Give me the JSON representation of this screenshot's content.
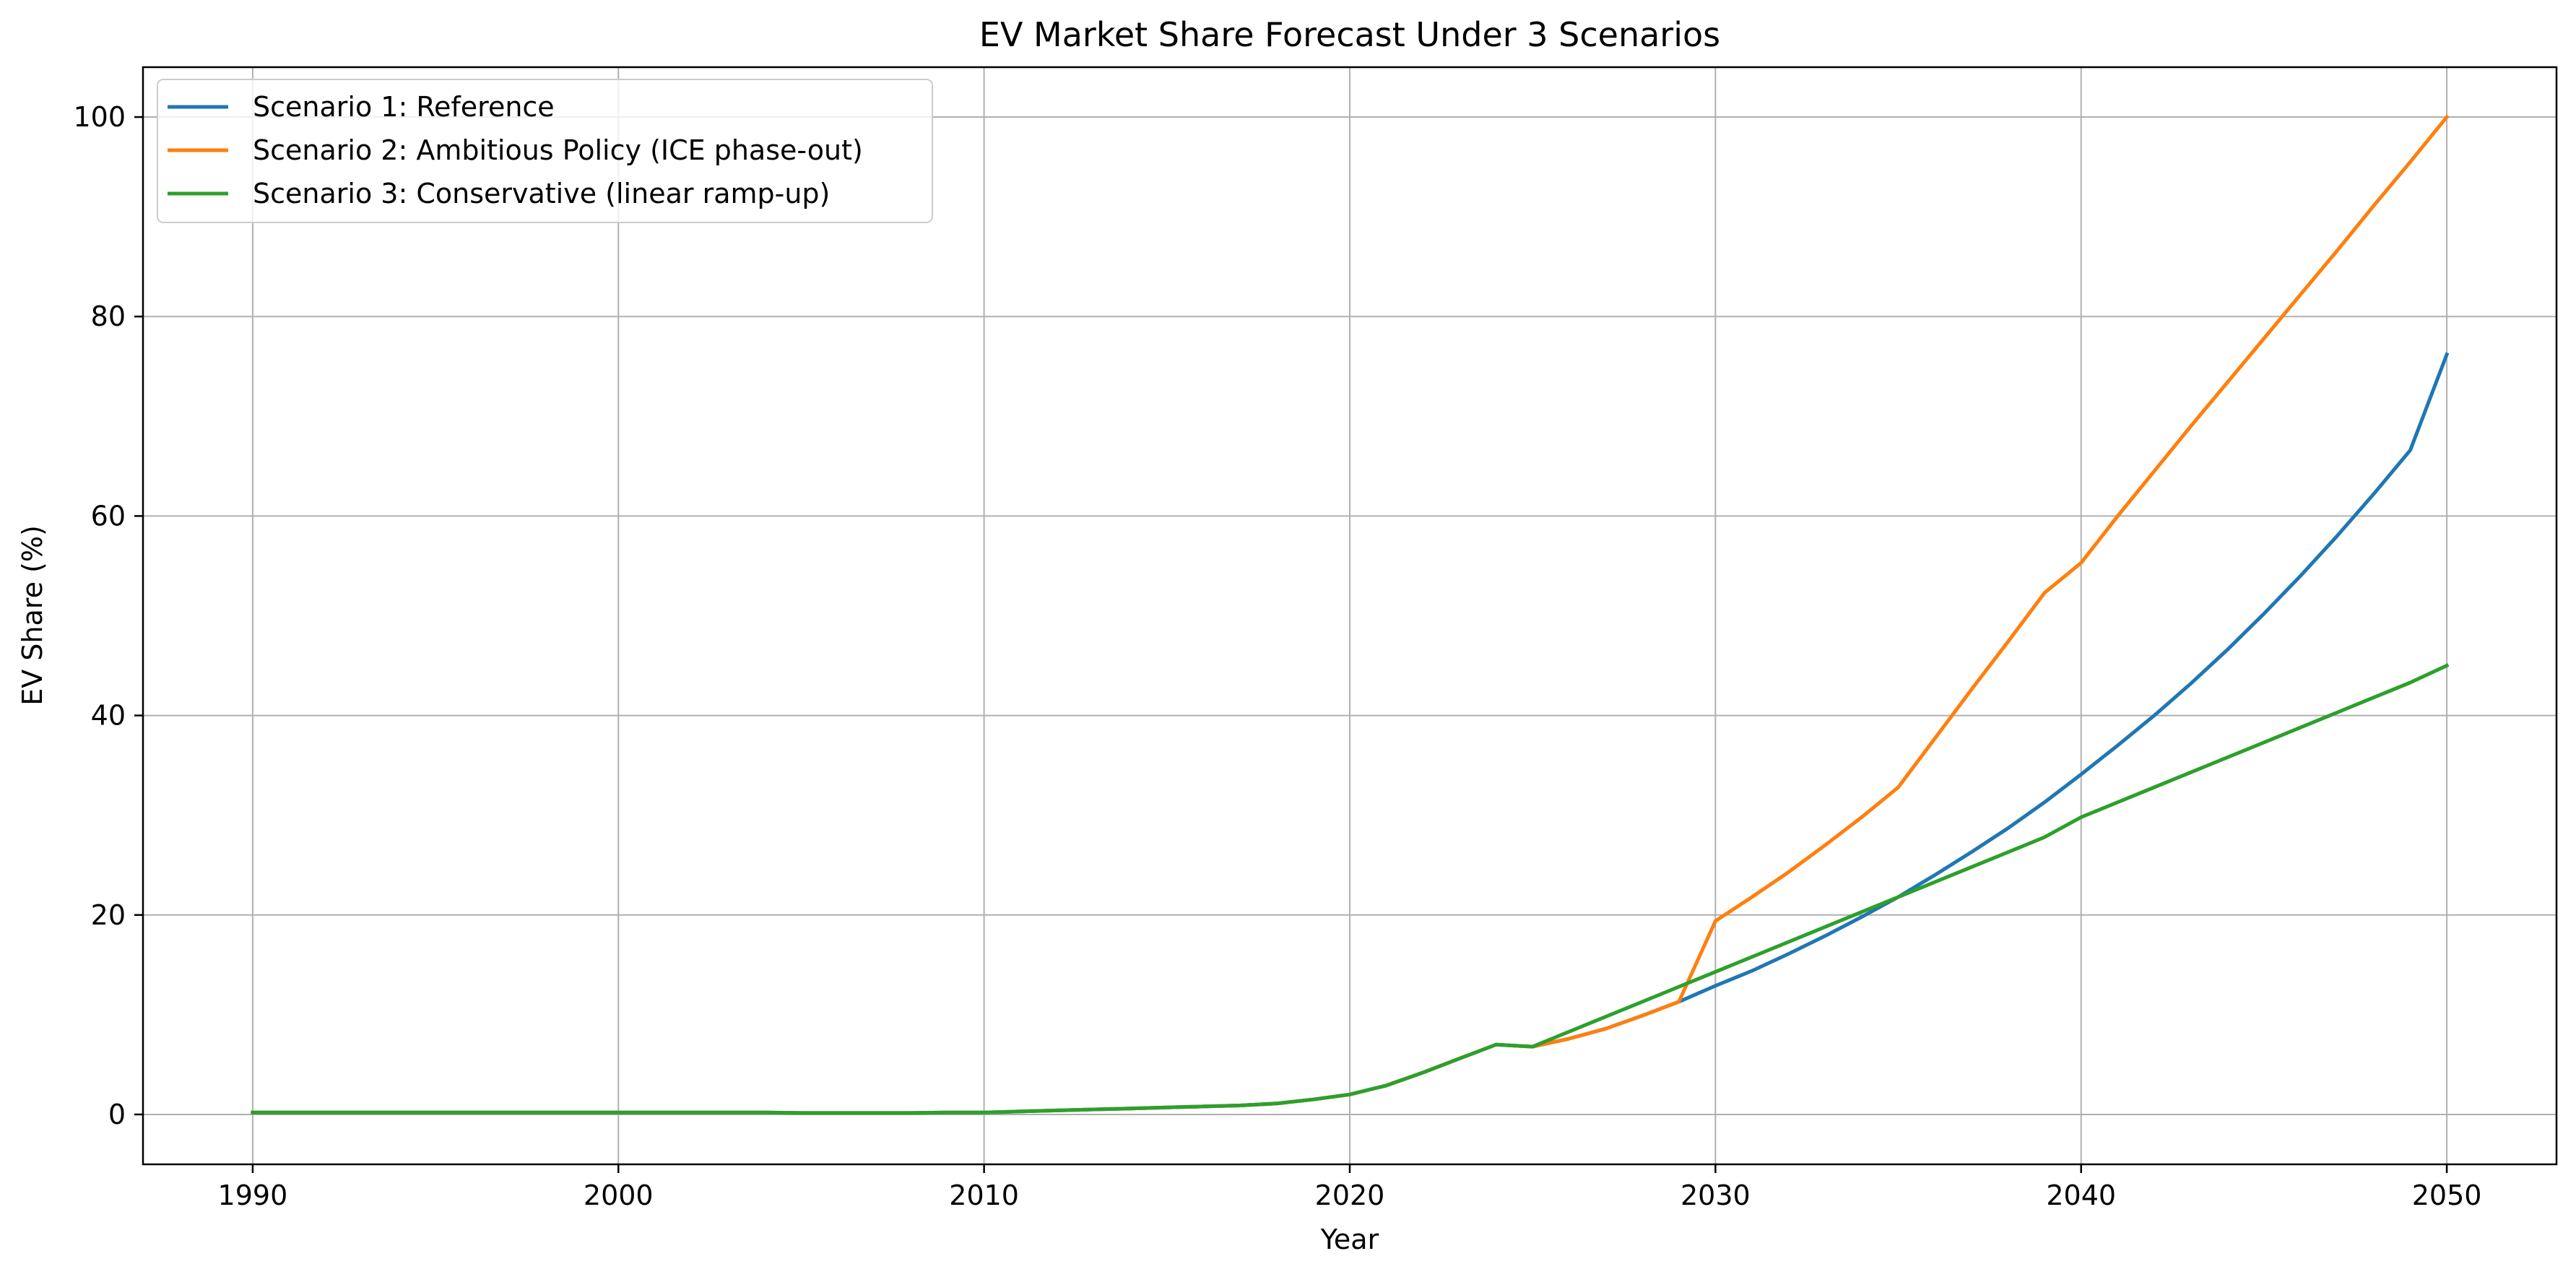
{
  "chart_data": {
    "type": "line",
    "title": "EV Market Share Forecast Under 3 Scenarios",
    "xlabel": "Year",
    "ylabel": "EV Share (%)",
    "xlim": [
      1987,
      2053
    ],
    "ylim": [
      -5,
      105
    ],
    "xticks": [
      1990,
      2000,
      2010,
      2020,
      2030,
      2040,
      2050
    ],
    "yticks": [
      0,
      20,
      40,
      60,
      80,
      100
    ],
    "grid": true,
    "legend_position": "top-left",
    "x": [
      1990,
      1991,
      1992,
      1993,
      1994,
      1995,
      1996,
      1997,
      1998,
      1999,
      2000,
      2001,
      2002,
      2003,
      2004,
      2005,
      2006,
      2007,
      2008,
      2009,
      2010,
      2011,
      2012,
      2013,
      2014,
      2015,
      2016,
      2017,
      2018,
      2019,
      2020,
      2021,
      2022,
      2023,
      2024,
      2025,
      2026,
      2027,
      2028,
      2029,
      2030,
      2031,
      2032,
      2033,
      2034,
      2035,
      2036,
      2037,
      2038,
      2039,
      2040,
      2041,
      2042,
      2043,
      2044,
      2045,
      2046,
      2047,
      2048,
      2049,
      2050
    ],
    "series": [
      {
        "name": "Scenario 1: Reference",
        "color": "#1f77b4",
        "values": [
          0.2,
          0.2,
          0.2,
          0.2,
          0.2,
          0.2,
          0.2,
          0.2,
          0.2,
          0.2,
          0.2,
          0.2,
          0.2,
          0.2,
          0.2,
          0.15,
          0.15,
          0.15,
          0.15,
          0.2,
          0.2,
          0.3,
          0.4,
          0.5,
          0.6,
          0.7,
          0.8,
          0.9,
          1.1,
          1.5,
          2.0,
          2.9,
          4.2,
          5.6,
          7.0,
          6.8,
          7.6,
          8.6,
          9.9,
          11.3,
          12.9,
          14.4,
          16.1,
          17.9,
          19.8,
          21.8,
          24.0,
          26.3,
          28.7,
          31.3,
          34.1,
          37.0,
          40.0,
          43.2,
          46.6,
          50.2,
          54.0,
          58.0,
          62.2,
          66.6,
          76.2
        ]
      },
      {
        "name": "Scenario 2: Ambitious Policy (ICE phase-out)",
        "color": "#ff7f0e",
        "values": [
          0.2,
          0.2,
          0.2,
          0.2,
          0.2,
          0.2,
          0.2,
          0.2,
          0.2,
          0.2,
          0.2,
          0.2,
          0.2,
          0.2,
          0.2,
          0.15,
          0.15,
          0.15,
          0.15,
          0.2,
          0.2,
          0.3,
          0.4,
          0.5,
          0.6,
          0.7,
          0.8,
          0.9,
          1.1,
          1.5,
          2.0,
          2.9,
          4.2,
          5.6,
          7.0,
          6.8,
          7.6,
          8.6,
          9.9,
          11.3,
          19.4,
          21.8,
          24.3,
          27.0,
          29.8,
          32.8,
          37.7,
          42.6,
          47.4,
          52.3,
          55.3,
          60.0,
          64.5,
          69.0,
          73.4,
          77.8,
          82.2,
          86.6,
          91.1,
          95.5,
          100.0
        ]
      },
      {
        "name": "Scenario 3: Conservative (linear ramp-up)",
        "color": "#2ca02c",
        "values": [
          0.2,
          0.2,
          0.2,
          0.2,
          0.2,
          0.2,
          0.2,
          0.2,
          0.2,
          0.2,
          0.2,
          0.2,
          0.2,
          0.2,
          0.2,
          0.15,
          0.15,
          0.15,
          0.15,
          0.2,
          0.2,
          0.3,
          0.4,
          0.5,
          0.6,
          0.7,
          0.8,
          0.9,
          1.1,
          1.5,
          2.0,
          2.9,
          4.2,
          5.6,
          7.0,
          6.8,
          8.3,
          9.8,
          11.3,
          12.8,
          14.3,
          15.8,
          17.3,
          18.8,
          20.3,
          21.8,
          23.3,
          24.8,
          26.3,
          27.8,
          29.8,
          31.3,
          32.8,
          34.3,
          35.8,
          37.3,
          38.8,
          40.3,
          41.8,
          43.3,
          45.0
        ]
      }
    ]
  }
}
